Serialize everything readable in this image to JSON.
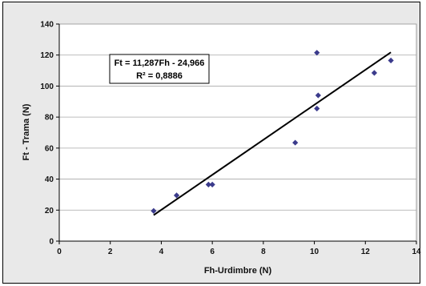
{
  "chart_data": {
    "type": "scatter",
    "title": "",
    "xlabel": "Fh-Urdimbre (N)",
    "ylabel": "Ft - Trama (N)",
    "xlim": [
      0,
      14
    ],
    "ylim": [
      0,
      140
    ],
    "x_ticks": [
      0,
      2,
      4,
      6,
      8,
      10,
      12,
      14
    ],
    "y_ticks": [
      0,
      20,
      40,
      60,
      80,
      100,
      120,
      140
    ],
    "grid": "horizontal",
    "legend": "none",
    "marker_color": "#3b3b8c",
    "series": [
      {
        "points": [
          [
            3.7,
            19.5
          ],
          [
            4.6,
            29.5
          ],
          [
            5.85,
            36.5
          ],
          [
            6.0,
            36.5
          ],
          [
            9.25,
            63.5
          ],
          [
            10.1,
            85.5
          ],
          [
            10.15,
            94.0
          ],
          [
            10.1,
            121.5
          ],
          [
            12.35,
            108.5
          ],
          [
            13.0,
            116.5
          ]
        ]
      }
    ],
    "trendline": {
      "slope": 11.287,
      "intercept": -24.966,
      "x_range": [
        3.7,
        13.0
      ],
      "equation_text": "Ft = 11,287Fh - 24,966",
      "r2_text": "R² = 0,8886"
    }
  }
}
